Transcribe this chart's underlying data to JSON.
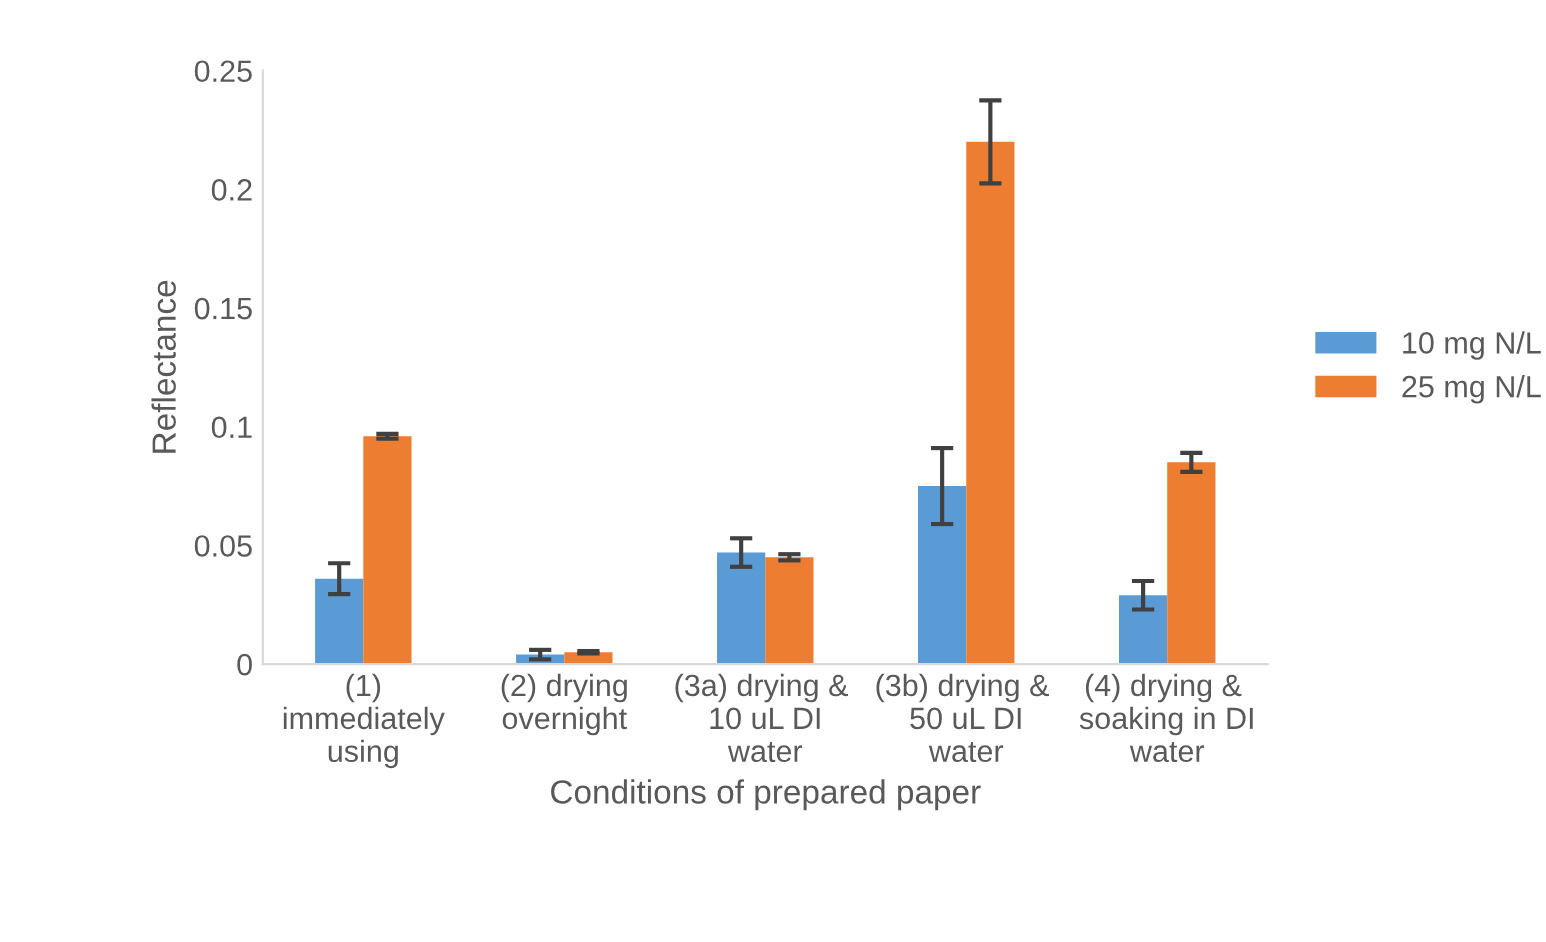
{
  "chart_data": {
    "type": "bar",
    "xlabel": "Conditions of prepared paper",
    "ylabel": "Reflectance",
    "categories": [
      "(1)\nimmediately\nusing",
      "(2) drying\novernight",
      "(3a) drying & \n10 uL DI\nwater",
      "(3b) drying & \n50 uL DI\nwater",
      "(4) drying & \nsoaking in DI\nwater"
    ],
    "series": [
      {
        "name": "10 mg N/L",
        "color": "#5b9bd5",
        "values": [
          0.036,
          0.004,
          0.047,
          0.075,
          0.029
        ],
        "errors": [
          0.0065,
          0.002,
          0.006,
          0.016,
          0.006
        ]
      },
      {
        "name": "25 mg N/L",
        "color": "#ed7d31",
        "values": [
          0.096,
          0.005,
          0.045,
          0.22,
          0.085
        ],
        "errors": [
          0.001,
          0.0005,
          0.0013,
          0.0175,
          0.004
        ]
      }
    ],
    "ylim": [
      0,
      0.25
    ],
    "yticks": [
      {
        "value": 0,
        "label": "0"
      },
      0.05,
      0.1,
      0.15,
      0.2,
      0.25
    ],
    "grid": false,
    "legend": "right"
  }
}
